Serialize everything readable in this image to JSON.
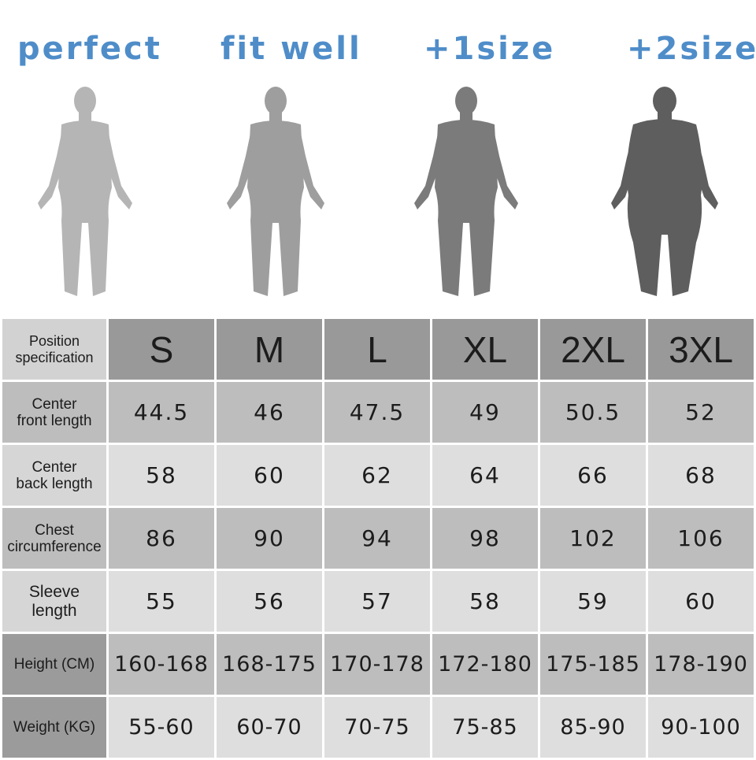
{
  "fit_labels": [
    "perfect",
    "fit well",
    "+1size",
    "+2size"
  ],
  "figure_colors": [
    "#b5b5b5",
    "#9e9e9e",
    "#7b7b7b",
    "#5e5e5e"
  ],
  "table": {
    "header_label": "Position specification",
    "sizes": [
      "S",
      "M",
      "L",
      "XL",
      "2XL",
      "3XL"
    ],
    "rows": [
      {
        "label_lines": [
          "Center",
          "front length"
        ],
        "values": [
          "44.5",
          "46",
          "47.5",
          "49",
          "50.5",
          "52"
        ]
      },
      {
        "label_lines": [
          "Center",
          "back length"
        ],
        "values": [
          "58",
          "60",
          "62",
          "64",
          "66",
          "68"
        ]
      },
      {
        "label_lines": [
          "Chest",
          "circumference"
        ],
        "values": [
          "86",
          "90",
          "94",
          "98",
          "102",
          "106"
        ]
      },
      {
        "label_lines": [
          "Sleeve",
          "length"
        ],
        "values": [
          "55",
          "56",
          "57",
          "58",
          "59",
          "60"
        ]
      },
      {
        "label_lines": [
          "Height (CM)"
        ],
        "values": [
          "160-168",
          "168-175",
          "170-178",
          "172-180",
          "175-185",
          "178-190"
        ]
      },
      {
        "label_lines": [
          "Weight (KG)"
        ],
        "values": [
          "55-60",
          "60-70",
          "70-75",
          "75-85",
          "85-90",
          "90-100"
        ]
      }
    ]
  }
}
